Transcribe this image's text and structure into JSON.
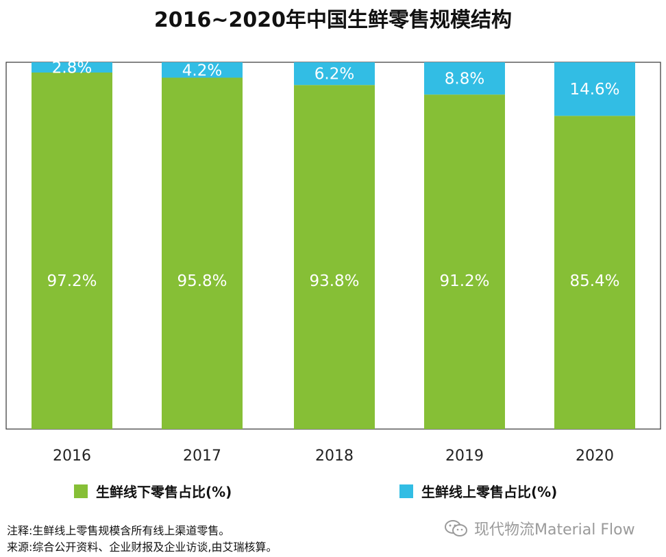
{
  "title": "2016~2020年中国生鲜零售规模结构",
  "legend": {
    "offline": "生鲜线下零售占比(%)",
    "online": "生鲜线上零售占比(%)"
  },
  "notes": {
    "note": "注释:生鲜线上零售规模含所有线上渠道零售。",
    "source": "来源:综合公开资料、企业财报及企业访谈,由艾瑞核算。"
  },
  "watermark": "现代物流Material Flow",
  "colors": {
    "offline": "#86bf36",
    "online": "#32bde4"
  },
  "chart_data": {
    "type": "bar",
    "stacked": true,
    "categories": [
      "2016",
      "2017",
      "2018",
      "2019",
      "2020"
    ],
    "series": [
      {
        "name": "生鲜线下零售占比(%)",
        "values": [
          97.2,
          95.8,
          93.8,
          91.2,
          85.4
        ],
        "labels": [
          "97.2%",
          "95.8%",
          "93.8%",
          "91.2%",
          "85.4%"
        ]
      },
      {
        "name": "生鲜线上零售占比(%)",
        "values": [
          2.8,
          4.2,
          6.2,
          8.8,
          14.6
        ],
        "labels": [
          "2.8%",
          "4.2%",
          "6.2%",
          "8.8%",
          "14.6%"
        ]
      }
    ],
    "ylim": [
      0,
      100
    ],
    "grid": false,
    "legend_position": "bottom"
  }
}
